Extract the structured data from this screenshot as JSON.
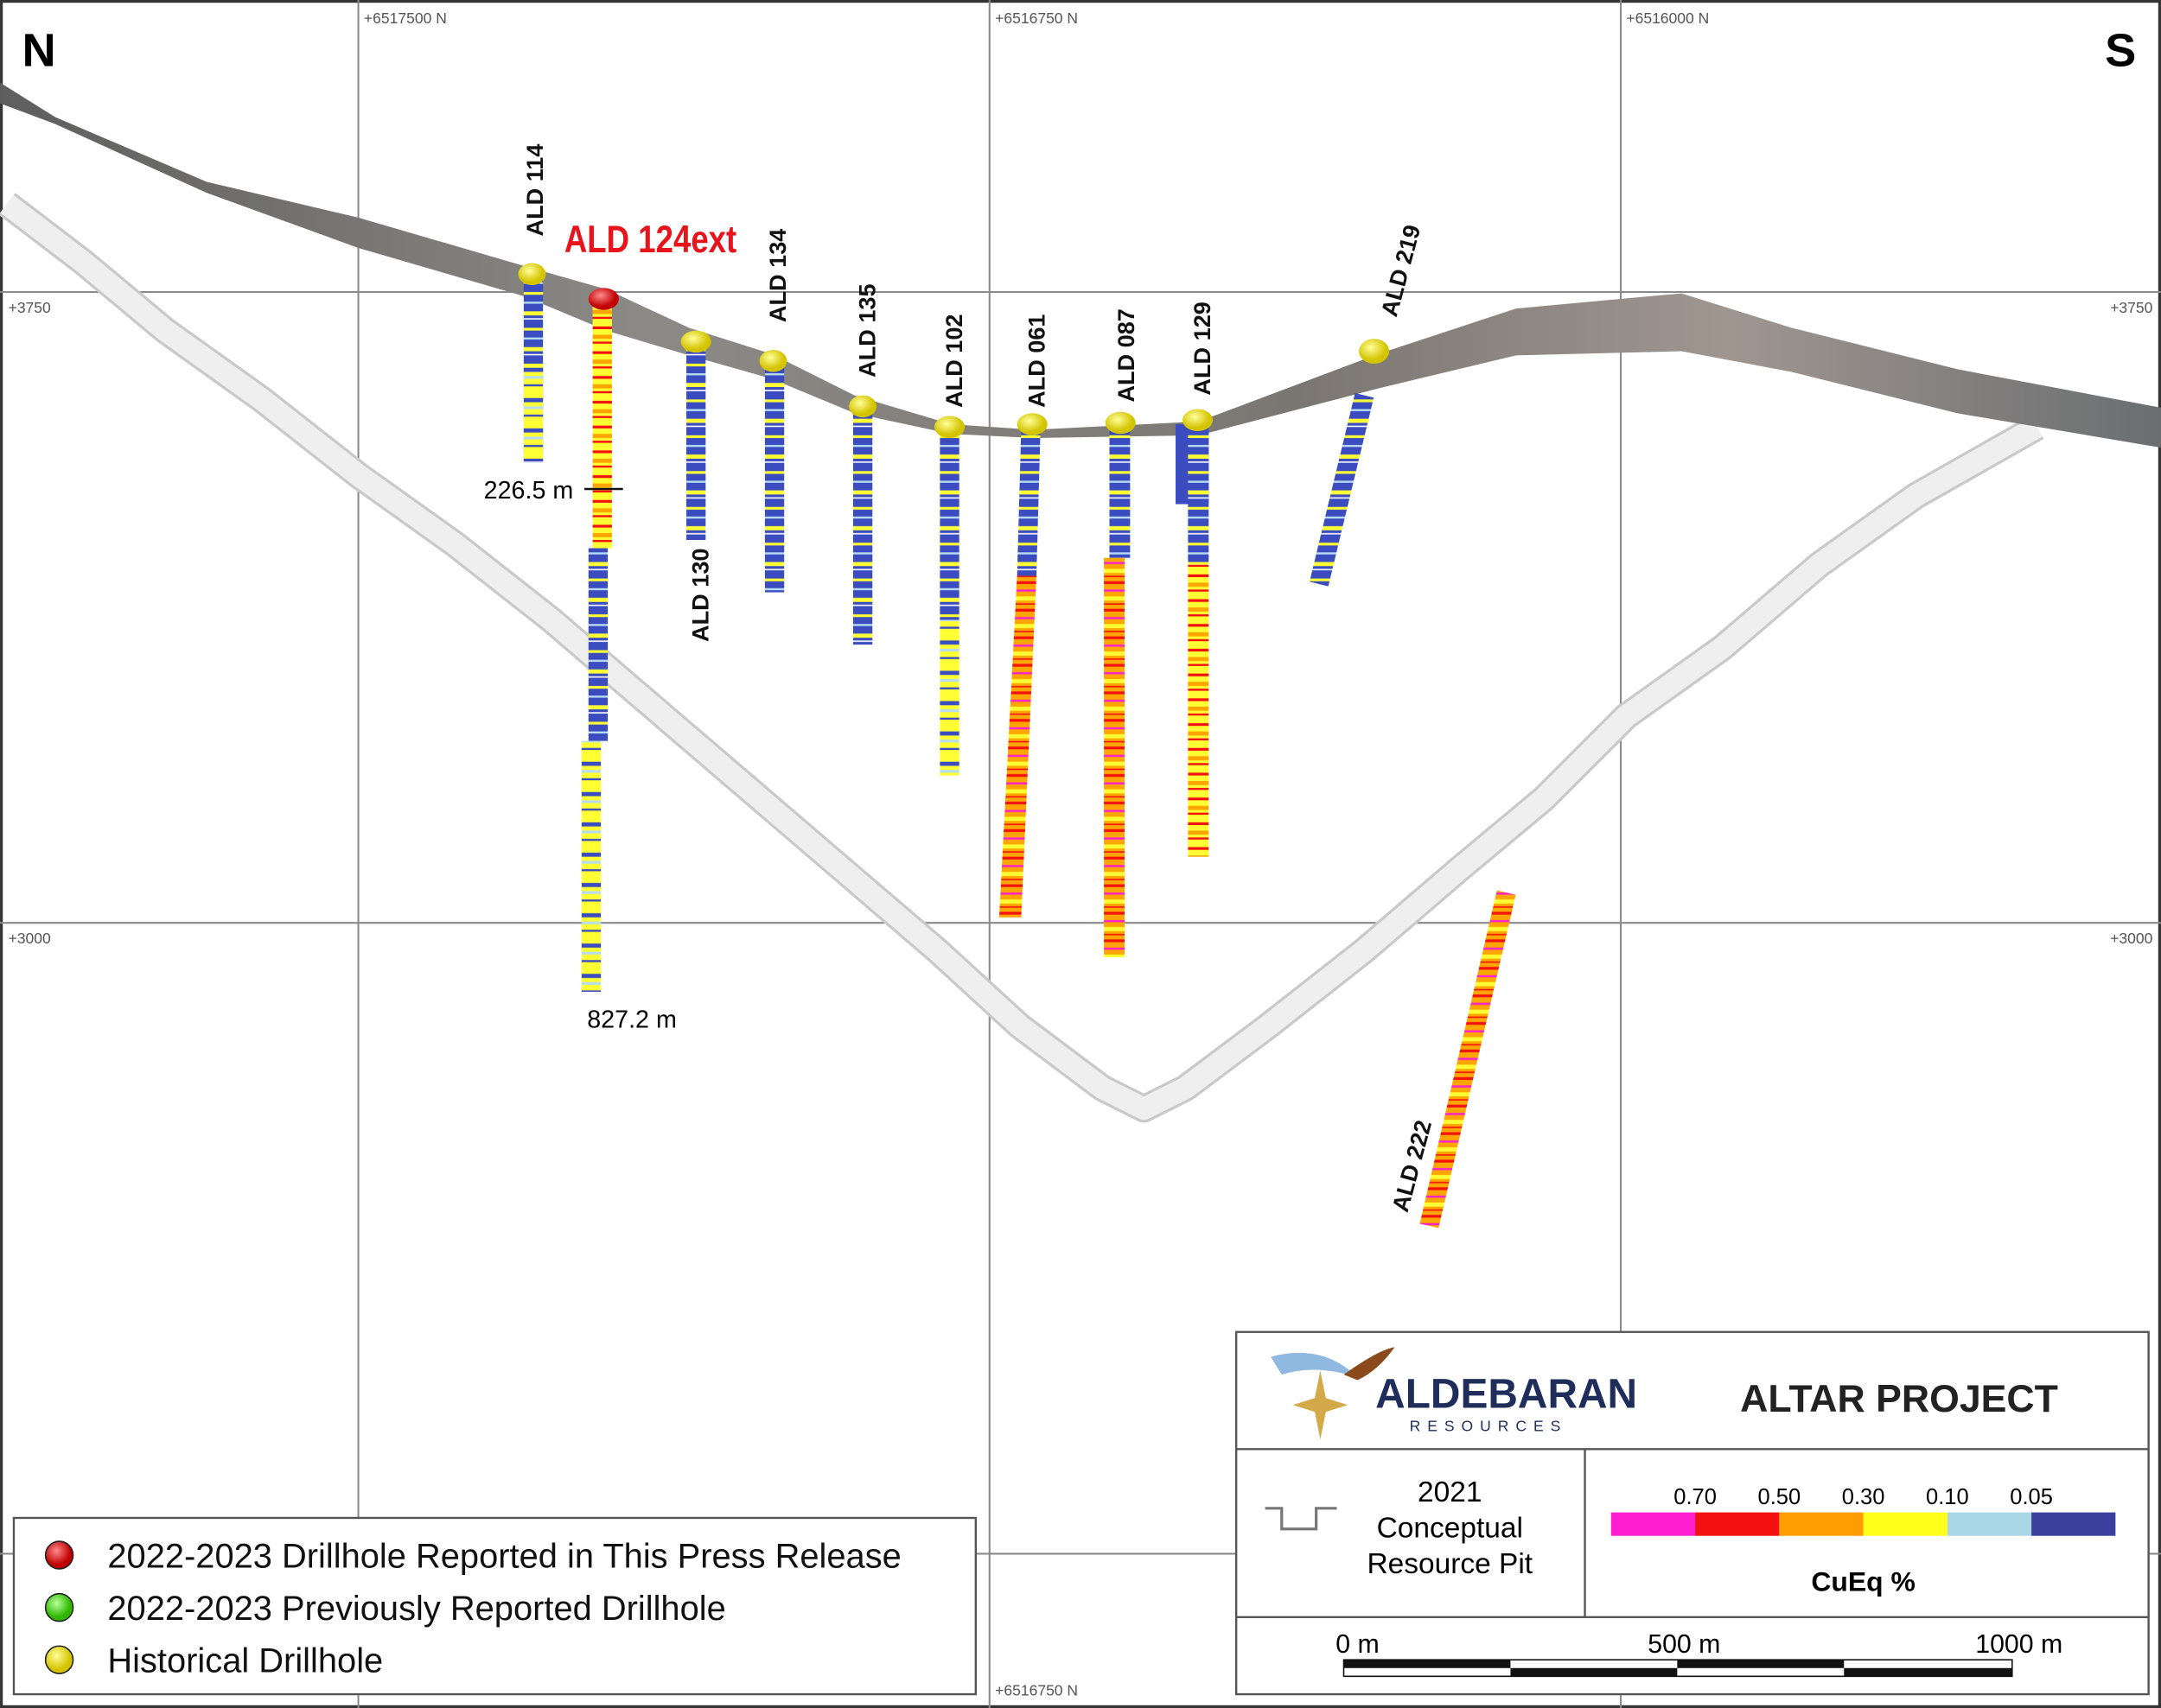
{
  "map": {
    "north": "N",
    "south": "S",
    "grid_labels": {
      "top": [
        "+6517500 N",
        "+6516750 N",
        "+6516000 N"
      ],
      "bottom": [
        "+6516750 N"
      ],
      "left": [
        "+3750",
        "+3000"
      ],
      "right": [
        "+3750",
        "+3000"
      ]
    },
    "drillholes": [
      {
        "label": "ALD 114"
      },
      {
        "label": "ALD 124ext"
      },
      {
        "label": "ALD 134"
      },
      {
        "label": "ALD 135"
      },
      {
        "label": "ALD 102"
      },
      {
        "label": "ALD 061"
      },
      {
        "label": "ALD 087"
      },
      {
        "label": "ALD 129"
      },
      {
        "label": "ALD 219"
      },
      {
        "label": "ALD 130"
      },
      {
        "label": "ALD 222"
      }
    ],
    "depth_labels": [
      "226.5 m",
      "827.2 m"
    ]
  },
  "legend": {
    "items": [
      "2022-2023 Drillhole Reported in This Press Release",
      "2022-2023 Previously Reported Drillhole",
      "Historical Drillhole"
    ]
  },
  "title_block": {
    "company": "ALDEBARAN",
    "company_sub": "RESOURCES",
    "project": "ALTAR PROJECT",
    "pit_legend": [
      "2021",
      "Conceptual",
      "Resource Pit"
    ],
    "grade_scale": {
      "labels": [
        "0.70",
        "0.50",
        "0.30",
        "0.10",
        "0.05"
      ],
      "colors": [
        "#ff1fd0",
        "#f21010",
        "#ff9c00",
        "#ffff1a",
        "#a9d6e5",
        "#3b3f9e"
      ],
      "title": "CuEq %"
    },
    "scale_bar": [
      "0 m",
      "500 m",
      "1000 m"
    ]
  }
}
